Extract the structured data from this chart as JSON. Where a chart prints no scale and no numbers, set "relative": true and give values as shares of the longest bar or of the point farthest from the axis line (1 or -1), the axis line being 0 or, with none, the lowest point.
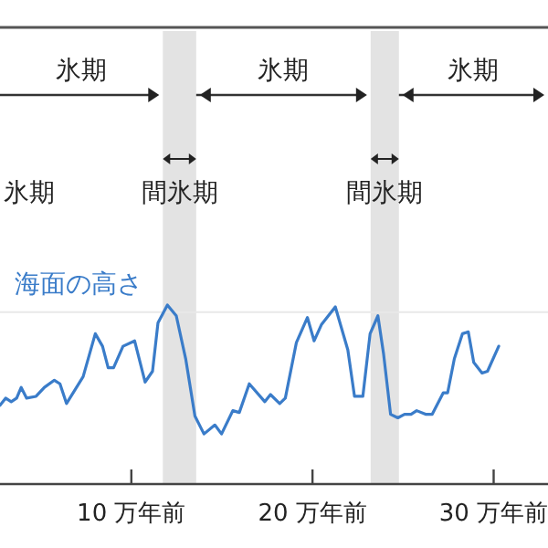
{
  "chart_data": {
    "type": "line",
    "relative": true,
    "x": [
      2.75,
      3.06,
      3.37,
      3.67,
      3.92,
      4.22,
      4.74,
      5.2,
      5.75,
      6.06,
      6.42,
      7.34,
      8.01,
      8.41,
      8.72,
      9.02,
      9.54,
      10.18,
      10.76,
      11.17,
      11.47,
      11.99,
      12.48,
      13.0,
      13.51,
      14.01,
      14.61,
      14.98,
      15.6,
      15.96,
      16.51,
      17.37,
      17.68,
      18.19,
      18.5,
      19.11,
      19.72,
      20.09,
      20.49,
      21.26,
      21.95,
      22.32,
      22.78,
      23.18,
      23.61,
      23.92,
      24.31,
      24.71,
      25.08,
      25.44,
      25.75,
      26.24,
      26.61,
      27.22,
      27.46,
      27.83,
      28.28,
      28.6,
      28.9,
      29.36,
      29.66,
      30.28
    ],
    "series": [
      {
        "name": "海面の高さ",
        "color": "#3a7cc9",
        "values": [
          0.44,
          0.48,
          0.46,
          0.48,
          0.54,
          0.48,
          0.49,
          0.54,
          0.58,
          0.56,
          0.45,
          0.6,
          0.84,
          0.77,
          0.65,
          0.65,
          0.77,
          0.8,
          0.57,
          0.63,
          0.9,
          1.0,
          0.94,
          0.7,
          0.38,
          0.28,
          0.33,
          0.28,
          0.41,
          0.4,
          0.56,
          0.46,
          0.5,
          0.45,
          0.48,
          0.79,
          0.93,
          0.8,
          0.89,
          0.99,
          0.75,
          0.49,
          0.49,
          0.84,
          0.94,
          0.73,
          0.39,
          0.37,
          0.39,
          0.39,
          0.41,
          0.39,
          0.39,
          0.51,
          0.51,
          0.7,
          0.84,
          0.85,
          0.68,
          0.62,
          0.63,
          0.77
        ]
      }
    ],
    "xlim": [
      2.75,
      33
    ],
    "xticks": [
      {
        "value": 10,
        "label": "10 万年前"
      },
      {
        "value": 20,
        "label": "20 万年前"
      },
      {
        "value": 30,
        "label": "30 万年前"
      }
    ],
    "bands": [
      {
        "axis": "x",
        "from": 11.74,
        "to": 13.58,
        "label": "間氷期",
        "color": "#e3e3e3"
      },
      {
        "axis": "x",
        "from": 23.21,
        "to": 24.77,
        "label": "間氷期",
        "color": "#e3e3e3"
      }
    ],
    "ref_lines": [
      {
        "axis": "y",
        "value": 0.96,
        "color": "#e8e8e8"
      }
    ],
    "annotations": [
      "氷期",
      "氷期",
      "氷期",
      "氷期"
    ],
    "legend": false
  }
}
